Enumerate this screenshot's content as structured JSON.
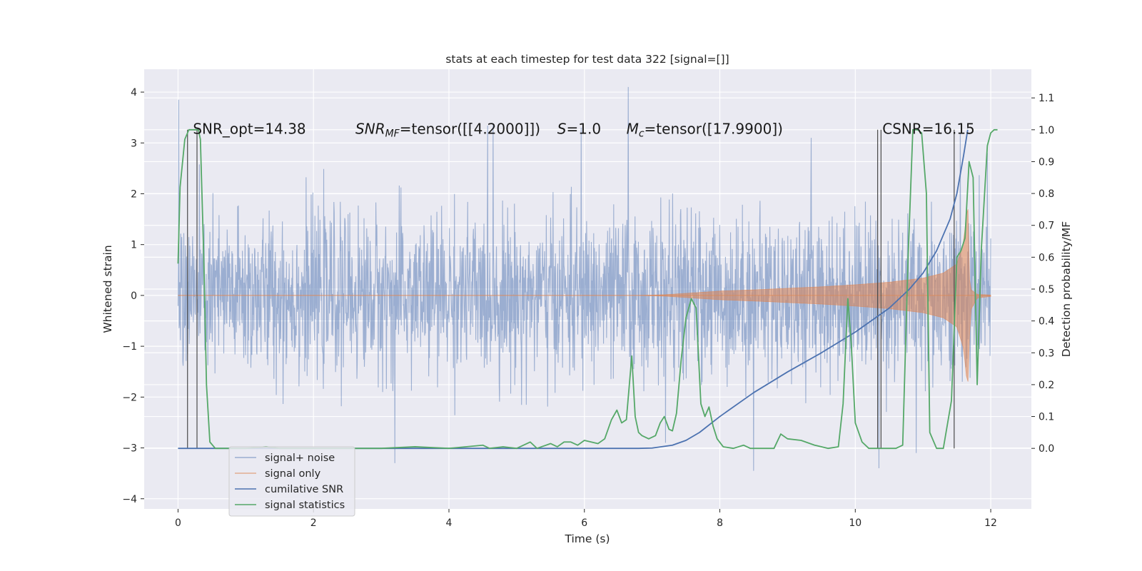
{
  "chart_data": {
    "type": "line",
    "title": "stats at each timestep for test data 322 [signal=[]]",
    "xlabel": "Time (s)",
    "ylabel": "Whitened strain",
    "y2label": "Detection probability/MF",
    "xlim": [
      -0.5,
      12.6
    ],
    "ylim": [
      -4.2,
      4.45
    ],
    "y2lim": [
      -0.19,
      1.19
    ],
    "xticks": [
      0,
      2,
      4,
      6,
      8,
      10,
      12
    ],
    "yticks": [
      -4,
      -3,
      -2,
      -1,
      0,
      1,
      2,
      3,
      4
    ],
    "y2ticks": [
      0.0,
      0.1,
      0.2,
      0.3,
      0.4,
      0.5,
      0.6,
      0.7,
      0.8,
      0.9,
      1.0,
      1.1
    ],
    "grid": true,
    "legend_position": "lower-left",
    "annotations": [
      {
        "id": "snr-opt",
        "text": "SNR_opt=14.38",
        "x": 0.22
      },
      {
        "id": "snr-mf",
        "text": "SNR_MF=tensor([[4.2000]])",
        "x": 2.62
      },
      {
        "id": "s",
        "text": "S=1.0",
        "x": 5.6
      },
      {
        "id": "mc",
        "text": "M_c=tensor([17.9900])",
        "x": 6.62
      },
      {
        "id": "csnr",
        "text": "CSNR=16.15",
        "x": 10.4
      }
    ],
    "annotation_y": 3.18,
    "series": [
      {
        "name": "signal+ noise",
        "color": "#4c72b0",
        "t_start": 0.0,
        "t_end": 12.0,
        "sigma": 0.78,
        "spikes": [
          {
            "t": 0.01,
            "y": 3.85
          },
          {
            "t": 6.65,
            "y": 4.1
          },
          {
            "t": 5.95,
            "y": 3.3
          },
          {
            "t": 4.65,
            "y": 3.35
          },
          {
            "t": 3.2,
            "y": -3.3
          },
          {
            "t": 10.35,
            "y": -3.4
          },
          {
            "t": 8.5,
            "y": -3.45
          },
          {
            "t": 11.55,
            "y": 3.2
          },
          {
            "t": 10.9,
            "y": -3.1
          },
          {
            "t": 7.2,
            "y": -2.9
          },
          {
            "t": 11.95,
            "y": 2.8
          },
          {
            "t": 9.35,
            "y": 3.1
          }
        ]
      },
      {
        "name": "signal only",
        "color": "#dd8452",
        "t_start": 0.0,
        "t_end": 12.0,
        "t_merge": 11.68,
        "envelope": [
          [
            0.0,
            0.0
          ],
          [
            6.8,
            0.0
          ],
          [
            7.2,
            0.015
          ],
          [
            7.6,
            0.05
          ],
          [
            8.0,
            0.085
          ],
          [
            8.5,
            0.11
          ],
          [
            9.0,
            0.14
          ],
          [
            9.5,
            0.17
          ],
          [
            10.0,
            0.21
          ],
          [
            10.5,
            0.26
          ],
          [
            11.0,
            0.34
          ],
          [
            11.3,
            0.44
          ],
          [
            11.5,
            0.62
          ],
          [
            11.6,
            1.05
          ],
          [
            11.66,
            1.85
          ],
          [
            11.7,
            0.3
          ],
          [
            11.8,
            0.05
          ],
          [
            12.0,
            0.02
          ]
        ]
      },
      {
        "name": "cumilative SNR",
        "color": "#4c72b0",
        "axis": "right",
        "points": [
          [
            0.0,
            0.0
          ],
          [
            6.0,
            0.0
          ],
          [
            6.8,
            0.0
          ],
          [
            7.0,
            0.001
          ],
          [
            7.3,
            0.01
          ],
          [
            7.5,
            0.025
          ],
          [
            7.7,
            0.05
          ],
          [
            8.0,
            0.1
          ],
          [
            8.5,
            0.175
          ],
          [
            9.0,
            0.24
          ],
          [
            9.5,
            0.3
          ],
          [
            10.0,
            0.365
          ],
          [
            10.5,
            0.44
          ],
          [
            10.8,
            0.5
          ],
          [
            11.0,
            0.55
          ],
          [
            11.2,
            0.62
          ],
          [
            11.4,
            0.72
          ],
          [
            11.5,
            0.8
          ],
          [
            11.6,
            0.92
          ],
          [
            11.66,
            1.0
          ]
        ]
      },
      {
        "name": "signal statistics",
        "color": "#55a868",
        "axis": "right",
        "points": [
          [
            0.0,
            0.58
          ],
          [
            0.03,
            0.82
          ],
          [
            0.1,
            0.97
          ],
          [
            0.16,
            1.0
          ],
          [
            0.3,
            1.0
          ],
          [
            0.33,
            0.97
          ],
          [
            0.38,
            0.6
          ],
          [
            0.42,
            0.2
          ],
          [
            0.47,
            0.02
          ],
          [
            0.55,
            0.0
          ],
          [
            1.0,
            0.0
          ],
          [
            1.3,
            0.005
          ],
          [
            1.5,
            0.0
          ],
          [
            2.0,
            0.0
          ],
          [
            2.5,
            0.0
          ],
          [
            3.0,
            0.0
          ],
          [
            3.5,
            0.005
          ],
          [
            3.8,
            0.002
          ],
          [
            4.0,
            0.0
          ],
          [
            4.5,
            0.01
          ],
          [
            4.6,
            0.0
          ],
          [
            4.8,
            0.005
          ],
          [
            5.0,
            0.0
          ],
          [
            5.2,
            0.02
          ],
          [
            5.3,
            0.0
          ],
          [
            5.5,
            0.015
          ],
          [
            5.6,
            0.005
          ],
          [
            5.7,
            0.02
          ],
          [
            5.8,
            0.02
          ],
          [
            5.9,
            0.01
          ],
          [
            6.0,
            0.025
          ],
          [
            6.1,
            0.02
          ],
          [
            6.2,
            0.015
          ],
          [
            6.3,
            0.03
          ],
          [
            6.4,
            0.09
          ],
          [
            6.48,
            0.12
          ],
          [
            6.55,
            0.08
          ],
          [
            6.62,
            0.09
          ],
          [
            6.7,
            0.29
          ],
          [
            6.75,
            0.1
          ],
          [
            6.8,
            0.05
          ],
          [
            6.85,
            0.04
          ],
          [
            6.95,
            0.03
          ],
          [
            7.05,
            0.04
          ],
          [
            7.12,
            0.08
          ],
          [
            7.18,
            0.1
          ],
          [
            7.25,
            0.06
          ],
          [
            7.3,
            0.055
          ],
          [
            7.36,
            0.11
          ],
          [
            7.43,
            0.28
          ],
          [
            7.5,
            0.41
          ],
          [
            7.58,
            0.47
          ],
          [
            7.65,
            0.44
          ],
          [
            7.72,
            0.14
          ],
          [
            7.78,
            0.1
          ],
          [
            7.84,
            0.13
          ],
          [
            7.9,
            0.07
          ],
          [
            7.96,
            0.03
          ],
          [
            8.05,
            0.005
          ],
          [
            8.2,
            0.0
          ],
          [
            8.35,
            0.01
          ],
          [
            8.45,
            0.0
          ],
          [
            8.6,
            0.0
          ],
          [
            8.8,
            0.0
          ],
          [
            8.9,
            0.045
          ],
          [
            9.0,
            0.03
          ],
          [
            9.2,
            0.025
          ],
          [
            9.4,
            0.01
          ],
          [
            9.6,
            0.0
          ],
          [
            9.75,
            0.005
          ],
          [
            9.82,
            0.14
          ],
          [
            9.89,
            0.47
          ],
          [
            9.94,
            0.33
          ],
          [
            10.0,
            0.08
          ],
          [
            10.1,
            0.02
          ],
          [
            10.2,
            0.0
          ],
          [
            10.6,
            0.0
          ],
          [
            10.7,
            0.01
          ],
          [
            10.78,
            0.6
          ],
          [
            10.85,
            1.0
          ],
          [
            10.92,
            1.0
          ],
          [
            10.98,
            0.99
          ],
          [
            11.05,
            0.8
          ],
          [
            11.1,
            0.05
          ],
          [
            11.2,
            0.0
          ],
          [
            11.3,
            0.0
          ],
          [
            11.42,
            0.15
          ],
          [
            11.5,
            0.6
          ],
          [
            11.56,
            0.62
          ],
          [
            11.62,
            0.66
          ],
          [
            11.68,
            0.9
          ],
          [
            11.74,
            0.85
          ],
          [
            11.8,
            0.2
          ],
          [
            11.86,
            0.62
          ],
          [
            11.95,
            0.95
          ],
          [
            12.0,
            0.99
          ],
          [
            12.05,
            1.0
          ],
          [
            12.1,
            1.0
          ]
        ]
      }
    ],
    "vlines_right": [
      {
        "t": 0.14,
        "bottom": 0.0,
        "top": 1.0
      },
      {
        "t": 0.28,
        "bottom": 0.0,
        "top": 1.0
      },
      {
        "t": 10.33,
        "bottom": 0.0,
        "top": 1.0
      },
      {
        "t": 10.38,
        "bottom": 0.0,
        "top": 1.0
      },
      {
        "t": 11.46,
        "bottom": 0.0,
        "top": 1.0
      }
    ]
  }
}
